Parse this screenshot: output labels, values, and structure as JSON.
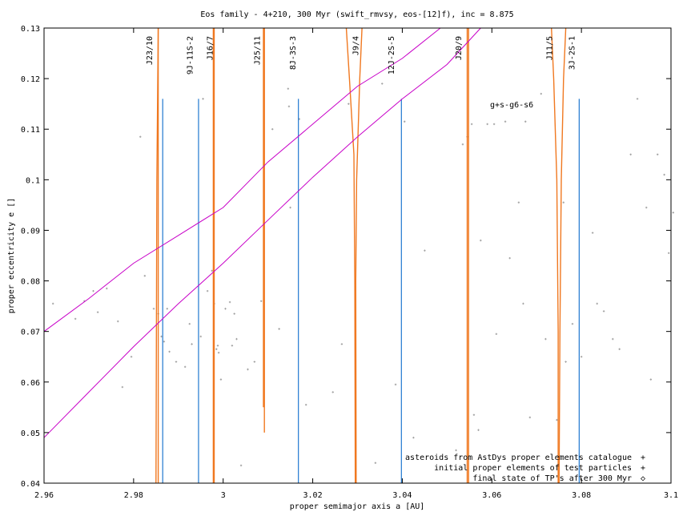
{
  "chart_data": {
    "type": "scatter",
    "title": "Eos family - 4+210, 300 Myr (swift_rmvsy, eos-[12]f), inc = 8.875",
    "xlabel": "proper semimajor axis a [AU]",
    "ylabel": "proper eccentricity e []",
    "xlim": [
      2.96,
      3.1
    ],
    "ylim": [
      0.04,
      0.13
    ],
    "x_ticks": [
      "2.96",
      "2.98",
      "3",
      "3.02",
      "3.04",
      "3.06",
      "3.08",
      "3.1"
    ],
    "y_ticks": [
      "0.04",
      "0.05",
      "0.06",
      "0.07",
      "0.08",
      "0.09",
      "0.1",
      "0.11",
      "0.12",
      "0.13"
    ],
    "grid": false,
    "legend_position": "bottom-right",
    "colors": {
      "asteroids": "#a0a0a0",
      "test_particles": "#000000",
      "final_state": "#ff0000",
      "resonance_lines": "#1f78d0",
      "resonance_curves": "#f07820",
      "secular": "#c800c8"
    },
    "legend": [
      {
        "label": "asteroids from AstDys proper elements catalogue",
        "marker": "+",
        "color": "#a0a0a0"
      },
      {
        "label": "initial proper elements of test particles",
        "marker": "+",
        "color": "#000000"
      },
      {
        "label": "final state of TP's after 300 Myr",
        "marker": "◇",
        "color": "#ff0000"
      }
    ],
    "secular_label": "g+s-g6-s6",
    "resonance_labels": [
      {
        "text": "J23/10",
        "x": 2.9845
      },
      {
        "text": "9J-11S-2",
        "x": 2.9935
      },
      {
        "text": "J16/7",
        "x": 2.998
      },
      {
        "text": "J25/11",
        "x": 3.0085
      },
      {
        "text": "8J-3S-3",
        "x": 3.0165
      },
      {
        "text": "J9/4",
        "x": 3.0305
      },
      {
        "text": "12J-2S-5",
        "x": 3.0385
      },
      {
        "text": "J20/9",
        "x": 3.0535
      },
      {
        "text": "J11/5",
        "x": 3.0738
      },
      {
        "text": "3J-2S-1",
        "x": 3.0788
      }
    ],
    "blue_resonance_lines": [
      {
        "x": 2.9865,
        "y_top": 0.116
      },
      {
        "x": 2.9945,
        "y_top": 0.116
      },
      {
        "x": 3.0168,
        "y_top": 0.116
      },
      {
        "x": 3.0398,
        "y_top": 0.116
      },
      {
        "x": 3.0795,
        "y_top": 0.116
      }
    ],
    "mmr_curves": [
      {
        "left": [
          [
            2.9855,
            0.13
          ],
          [
            2.9852,
            0.1
          ],
          [
            2.985,
            0.04
          ]
        ],
        "right": [
          [
            2.9855,
            0.13
          ],
          [
            2.9855,
            0.04
          ]
        ]
      },
      {
        "left": [
          [
            2.9978,
            0.13
          ],
          [
            2.9978,
            0.04
          ]
        ],
        "right": [
          [
            2.998,
            0.13
          ],
          [
            2.998,
            0.04
          ]
        ]
      },
      {
        "left": [
          [
            3.009,
            0.13
          ],
          [
            3.009,
            0.055
          ]
        ],
        "right": [
          [
            3.0092,
            0.13
          ],
          [
            3.0092,
            0.05
          ]
        ]
      },
      {
        "left": [
          [
            3.0275,
            0.13
          ],
          [
            3.0282,
            0.12
          ],
          [
            3.0292,
            0.105
          ],
          [
            3.0294,
            0.08
          ],
          [
            3.0295,
            0.04
          ]
        ],
        "right": [
          [
            3.031,
            0.13
          ],
          [
            3.0305,
            0.12
          ],
          [
            3.0298,
            0.1
          ],
          [
            3.0296,
            0.08
          ],
          [
            3.0297,
            0.04
          ]
        ]
      },
      {
        "left": [
          [
            3.0545,
            0.13
          ],
          [
            3.0545,
            0.04
          ]
        ],
        "right": [
          [
            3.0548,
            0.13
          ],
          [
            3.0548,
            0.04
          ]
        ]
      },
      {
        "left": [
          [
            3.0733,
            0.13
          ],
          [
            3.0738,
            0.12
          ],
          [
            3.0745,
            0.1
          ],
          [
            3.0748,
            0.07
          ],
          [
            3.0748,
            0.04
          ]
        ],
        "right": [
          [
            3.0765,
            0.13
          ],
          [
            3.076,
            0.12
          ],
          [
            3.0755,
            0.1
          ],
          [
            3.0752,
            0.07
          ],
          [
            3.075,
            0.04
          ]
        ]
      }
    ],
    "secular_curves": [
      {
        "points": [
          [
            2.96,
            0.07
          ],
          [
            2.97,
            0.0765
          ],
          [
            2.98,
            0.0835
          ],
          [
            2.99,
            0.089
          ],
          [
            3.0,
            0.0945
          ],
          [
            3.01,
            0.1035
          ],
          [
            3.02,
            0.111
          ],
          [
            3.03,
            0.1185
          ],
          [
            3.04,
            0.124
          ],
          [
            3.0485,
            0.13
          ]
        ]
      },
      {
        "points": [
          [
            2.96,
            0.049
          ],
          [
            2.97,
            0.058
          ],
          [
            2.98,
            0.067
          ],
          [
            2.99,
            0.0755
          ],
          [
            3.0,
            0.0835
          ],
          [
            3.01,
            0.092
          ],
          [
            3.02,
            0.1005
          ],
          [
            3.03,
            0.1085
          ],
          [
            3.04,
            0.116
          ],
          [
            3.05,
            0.1228
          ],
          [
            3.0575,
            0.13
          ]
        ]
      }
    ],
    "asteroids": [
      [
        2.962,
        0.0755
      ],
      [
        2.967,
        0.0725
      ],
      [
        2.969,
        0.076
      ],
      [
        2.971,
        0.078
      ],
      [
        2.972,
        0.0738
      ],
      [
        2.974,
        0.0785
      ],
      [
        2.9765,
        0.072
      ],
      [
        2.9775,
        0.059
      ],
      [
        2.9795,
        0.065
      ],
      [
        2.9815,
        0.1085
      ],
      [
        2.9825,
        0.081
      ],
      [
        2.9845,
        0.0745
      ],
      [
        2.9855,
        0.0735
      ],
      [
        2.9862,
        0.069
      ],
      [
        2.9868,
        0.068
      ],
      [
        2.9875,
        0.0745
      ],
      [
        2.988,
        0.066
      ],
      [
        2.9895,
        0.064
      ],
      [
        2.9915,
        0.063
      ],
      [
        2.9925,
        0.0715
      ],
      [
        2.993,
        0.0675
      ],
      [
        2.995,
        0.069
      ],
      [
        2.9955,
        0.116
      ],
      [
        2.9965,
        0.078
      ],
      [
        2.9975,
        0.082
      ],
      [
        2.998,
        0.0755
      ],
      [
        2.9985,
        0.0665
      ],
      [
        2.9988,
        0.0672
      ],
      [
        2.999,
        0.0658
      ],
      [
        2.9995,
        0.0605
      ],
      [
        3.0005,
        0.0745
      ],
      [
        3.0015,
        0.0758
      ],
      [
        3.002,
        0.0672
      ],
      [
        3.0025,
        0.0735
      ],
      [
        3.003,
        0.0685
      ],
      [
        3.004,
        0.0435
      ],
      [
        3.0055,
        0.0625
      ],
      [
        3.007,
        0.064
      ],
      [
        3.0085,
        0.076
      ],
      [
        3.011,
        0.11
      ],
      [
        3.0125,
        0.0705
      ],
      [
        3.0145,
        0.118
      ],
      [
        3.0147,
        0.1145
      ],
      [
        3.015,
        0.0945
      ],
      [
        3.017,
        0.112
      ],
      [
        3.0185,
        0.0555
      ],
      [
        3.0245,
        0.058
      ],
      [
        3.0265,
        0.0675
      ],
      [
        3.028,
        0.115
      ],
      [
        3.034,
        0.044
      ],
      [
        3.0355,
        0.119
      ],
      [
        3.0385,
        0.0595
      ],
      [
        3.0405,
        0.1115
      ],
      [
        3.0425,
        0.049
      ],
      [
        3.045,
        0.086
      ],
      [
        3.052,
        0.0465
      ],
      [
        3.0535,
        0.107
      ],
      [
        3.0545,
        0.1085
      ],
      [
        3.0555,
        0.111
      ],
      [
        3.056,
        0.0535
      ],
      [
        3.057,
        0.0505
      ],
      [
        3.0575,
        0.088
      ],
      [
        3.059,
        0.111
      ],
      [
        3.0605,
        0.111
      ],
      [
        3.061,
        0.0695
      ],
      [
        3.063,
        0.1115
      ],
      [
        3.064,
        0.0845
      ],
      [
        3.066,
        0.0955
      ],
      [
        3.067,
        0.0755
      ],
      [
        3.0675,
        0.1115
      ],
      [
        3.0685,
        0.053
      ],
      [
        3.071,
        0.117
      ],
      [
        3.072,
        0.0685
      ],
      [
        3.0745,
        0.0525
      ],
      [
        3.076,
        0.0955
      ],
      [
        3.0765,
        0.064
      ],
      [
        3.078,
        0.0715
      ],
      [
        3.08,
        0.065
      ],
      [
        3.0825,
        0.0895
      ],
      [
        3.0835,
        0.0755
      ],
      [
        3.085,
        0.074
      ],
      [
        3.087,
        0.0685
      ],
      [
        3.0885,
        0.0665
      ],
      [
        3.091,
        0.105
      ],
      [
        3.0925,
        0.116
      ],
      [
        3.0945,
        0.0945
      ],
      [
        3.0955,
        0.0605
      ],
      [
        3.097,
        0.105
      ],
      [
        3.0985,
        0.101
      ],
      [
        3.0995,
        0.0855
      ],
      [
        3.1005,
        0.0935
      ]
    ]
  }
}
